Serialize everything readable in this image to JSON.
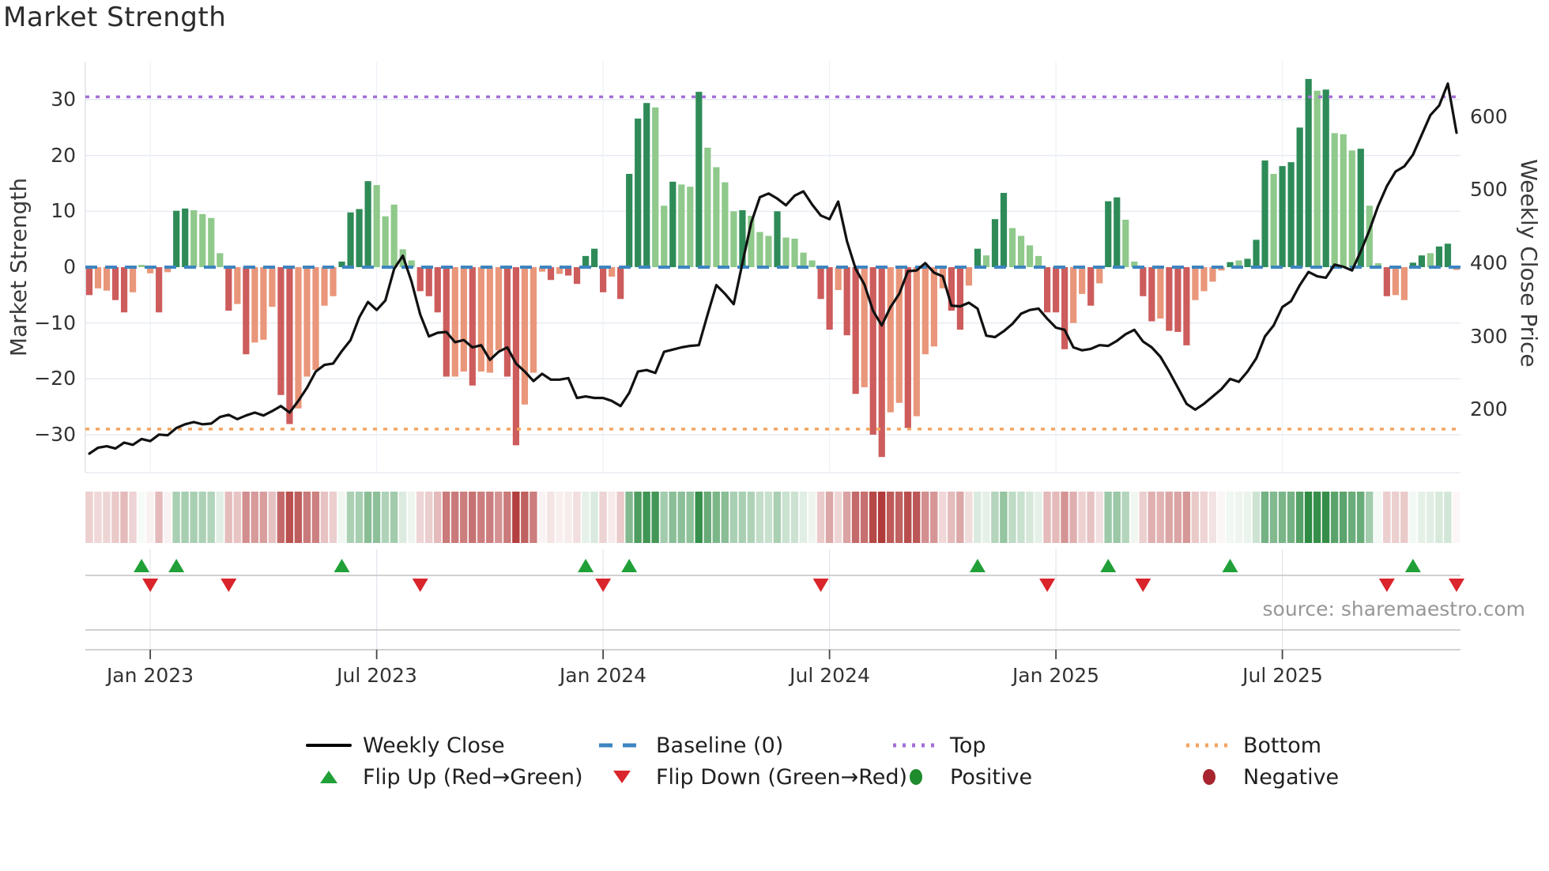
{
  "title": "Market Strength",
  "source": "source: sharemaestro.com",
  "axes": {
    "left_label": "Market Strength",
    "right_label": "Weekly Close Price",
    "left_ticks": [
      "30",
      "20",
      "10",
      "0",
      "−10",
      "−20",
      "−30"
    ],
    "right_ticks": [
      "600",
      "500",
      "400",
      "300",
      "200"
    ],
    "x_tick_labels": [
      "Jan 2023",
      "Jul 2023",
      "Jan 2024",
      "Jul 2024",
      "Jan 2025",
      "Jul 2025"
    ]
  },
  "legend": {
    "items": [
      {
        "label": "Weekly Close",
        "swatch": "black-line"
      },
      {
        "label": "Baseline (0)",
        "swatch": "blue-dashed"
      },
      {
        "label": "Top",
        "swatch": "purple-dotted"
      },
      {
        "label": "Bottom",
        "swatch": "orange-dotted"
      },
      {
        "label": "Flip Up (Red→Green)",
        "swatch": "green-up-triangle"
      },
      {
        "label": "Flip Down (Green→Red)",
        "swatch": "red-down-triangle"
      },
      {
        "label": "Positive",
        "swatch": "green-dot"
      },
      {
        "label": "Negative",
        "swatch": "dark-red-dot"
      }
    ]
  },
  "colors": {
    "bar_pos_dark": "#2e8b57",
    "bar_pos_light": "#8fc98b",
    "bar_neg_dark": "#cd5c5c",
    "bar_neg_light": "#e9967a",
    "baseline": "#3d85c0",
    "top_line": "#a36fd6",
    "bottom_line": "#f3a561",
    "price_line": "#111111",
    "flip_up": "#21a038",
    "flip_down": "#d9252b",
    "positive_dot": "#1e8b2d",
    "negative_dot": "#a8242e",
    "heat_pos": "#2e8b44",
    "heat_neg": "#b13a3a",
    "grid": "#e7ebf2",
    "grid_vert": "#eef1f6",
    "strip_line": "#c2c2c2"
  },
  "chart_data": {
    "type": "combo",
    "description": "Weekly market strength oscillator bars (left axis) with weekly close price line (right axis), heatmap strip and flip markers; weekly data from mid-Nov 2022 to Nov 2025",
    "weeks": 158,
    "x_tick_weeks": [
      7,
      33,
      59,
      85,
      111,
      137
    ],
    "strength_axis": {
      "ticks": [
        30,
        20,
        10,
        0,
        -10,
        -20,
        -30
      ],
      "ylim": [
        -36.8,
        36.8
      ]
    },
    "price_axis": {
      "ticks": [
        600,
        500,
        400,
        300,
        200
      ],
      "ylim": [
        114,
        675
      ]
    },
    "baseline": 0,
    "top_line": 30.5,
    "bottom_line": -29.0,
    "bars": [
      [
        -5,
        "d"
      ],
      [
        -3.8,
        "l"
      ],
      [
        -4.2,
        "l"
      ],
      [
        -5.9,
        "d"
      ],
      [
        -8.1,
        "d"
      ],
      [
        -4.5,
        "l"
      ],
      [
        0.4,
        "l"
      ],
      [
        -1.1,
        "l"
      ],
      [
        -8.1,
        "d"
      ],
      [
        -0.9,
        "l"
      ],
      [
        10.1,
        "d"
      ],
      [
        10.5,
        "d"
      ],
      [
        10.2,
        "l"
      ],
      [
        9.5,
        "l"
      ],
      [
        8.8,
        "l"
      ],
      [
        2.5,
        "l"
      ],
      [
        -7.8,
        "d"
      ],
      [
        -6.6,
        "l"
      ],
      [
        -15.6,
        "d"
      ],
      [
        -13.5,
        "l"
      ],
      [
        -13,
        "l"
      ],
      [
        -7.1,
        "l"
      ],
      [
        -22.9,
        "d"
      ],
      [
        -28.1,
        "d"
      ],
      [
        -25.3,
        "l"
      ],
      [
        -19.6,
        "l"
      ],
      [
        -18.4,
        "l"
      ],
      [
        -6.9,
        "l"
      ],
      [
        -5.2,
        "l"
      ],
      [
        1,
        "d"
      ],
      [
        9.8,
        "d"
      ],
      [
        10.4,
        "d"
      ],
      [
        15.4,
        "d"
      ],
      [
        14.7,
        "l"
      ],
      [
        9.1,
        "l"
      ],
      [
        11.2,
        "l"
      ],
      [
        3.2,
        "l"
      ],
      [
        1.2,
        "l"
      ],
      [
        -4.3,
        "d"
      ],
      [
        -5.2,
        "d"
      ],
      [
        -8.1,
        "d"
      ],
      [
        -19.6,
        "d"
      ],
      [
        -19.6,
        "l"
      ],
      [
        -18.7,
        "l"
      ],
      [
        -21.2,
        "d"
      ],
      [
        -18.7,
        "l"
      ],
      [
        -18.9,
        "l"
      ],
      [
        -14.9,
        "l"
      ],
      [
        -19.6,
        "d"
      ],
      [
        -31.9,
        "d"
      ],
      [
        -24.6,
        "l"
      ],
      [
        -18.9,
        "l"
      ],
      [
        -0.8,
        "l"
      ],
      [
        -2.3,
        "d"
      ],
      [
        -1.2,
        "l"
      ],
      [
        -1.5,
        "d"
      ],
      [
        -3,
        "d"
      ],
      [
        2,
        "d"
      ],
      [
        3.3,
        "d"
      ],
      [
        -4.5,
        "d"
      ],
      [
        -1.7,
        "l"
      ],
      [
        -5.7,
        "d"
      ],
      [
        16.7,
        "d"
      ],
      [
        26.6,
        "d"
      ],
      [
        29.4,
        "d"
      ],
      [
        28.6,
        "l"
      ],
      [
        11,
        "l"
      ],
      [
        15.3,
        "d"
      ],
      [
        14.8,
        "l"
      ],
      [
        14.4,
        "l"
      ],
      [
        31.4,
        "d"
      ],
      [
        21.4,
        "l"
      ],
      [
        17.9,
        "l"
      ],
      [
        15.2,
        "l"
      ],
      [
        10,
        "l"
      ],
      [
        10.2,
        "d"
      ],
      [
        9.2,
        "l"
      ],
      [
        6.3,
        "l"
      ],
      [
        5.6,
        "l"
      ],
      [
        10,
        "d"
      ],
      [
        5.3,
        "l"
      ],
      [
        5.1,
        "l"
      ],
      [
        2.6,
        "l"
      ],
      [
        1.2,
        "l"
      ],
      [
        -5.7,
        "d"
      ],
      [
        -11.2,
        "d"
      ],
      [
        -4.1,
        "l"
      ],
      [
        -12.2,
        "d"
      ],
      [
        -22.7,
        "d"
      ],
      [
        -21.5,
        "l"
      ],
      [
        -30,
        "d"
      ],
      [
        -34,
        "d"
      ],
      [
        -26,
        "l"
      ],
      [
        -24.3,
        "l"
      ],
      [
        -28.8,
        "d"
      ],
      [
        -26.7,
        "l"
      ],
      [
        -15.6,
        "l"
      ],
      [
        -14.2,
        "l"
      ],
      [
        -3.8,
        "l"
      ],
      [
        -7.8,
        "d"
      ],
      [
        -11.2,
        "d"
      ],
      [
        -3.3,
        "l"
      ],
      [
        3.3,
        "d"
      ],
      [
        2.1,
        "l"
      ],
      [
        8.6,
        "d"
      ],
      [
        13.3,
        "d"
      ],
      [
        7,
        "l"
      ],
      [
        5.6,
        "l"
      ],
      [
        3.9,
        "l"
      ],
      [
        2,
        "l"
      ],
      [
        -8.1,
        "d"
      ],
      [
        -8.1,
        "d"
      ],
      [
        -14.7,
        "d"
      ],
      [
        -10,
        "l"
      ],
      [
        -4.8,
        "l"
      ],
      [
        -6.9,
        "d"
      ],
      [
        -2.9,
        "l"
      ],
      [
        11.8,
        "d"
      ],
      [
        12.5,
        "d"
      ],
      [
        8.5,
        "l"
      ],
      [
        1,
        "l"
      ],
      [
        -5.2,
        "d"
      ],
      [
        -9.7,
        "d"
      ],
      [
        -9.2,
        "l"
      ],
      [
        -11.4,
        "d"
      ],
      [
        -11.6,
        "d"
      ],
      [
        -14,
        "d"
      ],
      [
        -5.9,
        "l"
      ],
      [
        -4.3,
        "l"
      ],
      [
        -2.6,
        "l"
      ],
      [
        -0.6,
        "l"
      ],
      [
        0.9,
        "d"
      ],
      [
        1.2,
        "l"
      ],
      [
        1.5,
        "d"
      ],
      [
        4.9,
        "d"
      ],
      [
        19.1,
        "d"
      ],
      [
        16.7,
        "l"
      ],
      [
        18.1,
        "d"
      ],
      [
        18.8,
        "d"
      ],
      [
        25,
        "d"
      ],
      [
        33.7,
        "d"
      ],
      [
        31.6,
        "l"
      ],
      [
        31.8,
        "d"
      ],
      [
        24,
        "l"
      ],
      [
        23.8,
        "l"
      ],
      [
        20.9,
        "l"
      ],
      [
        21.2,
        "d"
      ],
      [
        11,
        "l"
      ],
      [
        0.7,
        "l"
      ],
      [
        -5.2,
        "d"
      ],
      [
        -5,
        "l"
      ],
      [
        -5.9,
        "l"
      ],
      [
        0.8,
        "d"
      ],
      [
        2.1,
        "d"
      ],
      [
        2.5,
        "l"
      ],
      [
        3.7,
        "d"
      ],
      [
        4.2,
        "d"
      ],
      [
        -0.5,
        "l"
      ]
    ],
    "weekly_close": [
      140,
      148,
      150,
      147,
      155,
      152,
      160,
      157,
      166,
      165,
      175,
      180,
      183,
      180,
      181,
      190,
      193,
      187,
      192,
      196,
      192,
      198,
      205,
      196,
      212,
      230,
      252,
      261,
      263,
      280,
      295,
      326,
      347,
      336,
      349,
      392,
      410,
      375,
      330,
      300,
      305,
      306,
      292,
      295,
      285,
      288,
      268,
      279,
      285,
      263,
      252,
      239,
      249,
      241,
      241,
      243,
      216,
      218,
      216,
      216,
      212,
      205,
      223,
      252,
      254,
      250,
      279,
      282,
      285,
      287,
      288,
      330,
      370,
      358,
      344,
      400,
      455,
      490,
      495,
      488,
      479,
      492,
      498,
      480,
      465,
      460,
      484,
      430,
      392,
      371,
      335,
      315,
      340,
      358,
      389,
      390,
      400,
      387,
      382,
      342,
      341,
      346,
      338,
      301,
      299,
      307,
      317,
      331,
      336,
      338,
      324,
      312,
      309,
      285,
      281,
      283,
      288,
      287,
      294,
      303,
      309,
      293,
      285,
      272,
      252,
      230,
      208,
      200,
      208,
      218,
      228,
      242,
      238,
      252,
      270,
      300,
      315,
      340,
      348,
      370,
      388,
      382,
      380,
      398,
      395,
      390,
      416,
      445,
      478,
      505,
      525,
      532,
      548,
      575,
      602,
      615,
      645,
      578
    ],
    "flip_up_weeks": [
      6,
      10,
      29,
      57,
      62,
      102,
      117,
      131,
      152
    ],
    "flip_down_weeks": [
      7,
      16,
      38,
      59,
      84,
      110,
      121,
      149,
      157
    ],
    "heatmap": "one cell per week, red-to-green color derived from bar value"
  }
}
